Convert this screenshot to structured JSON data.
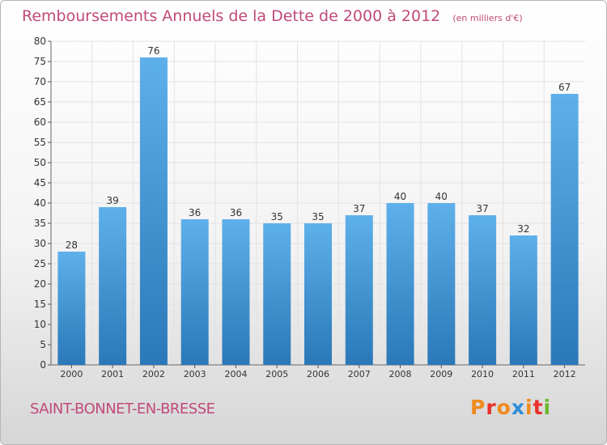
{
  "header": {
    "title": "Remboursements Annuels de la Dette de 2000 à 2012",
    "unit": "(en milliers d'€)"
  },
  "footer": {
    "commune": "SAINT-BONNET-EN-BRESSE",
    "logo_text": "Proxiti"
  },
  "colors": {
    "title": "#c04a7a",
    "bar_top": "#5eb0ea",
    "bar_bottom": "#2a78b8",
    "logo_letters": [
      "#f08a1c",
      "#e9302a",
      "#f08a1c",
      "#2e8dd8",
      "#f08a1c",
      "#e9302a",
      "#6ab82e"
    ]
  },
  "chart_data": {
    "type": "bar",
    "title": "Remboursements Annuels de la Dette de 2000 à 2012",
    "subtitle": "(en milliers d'€)",
    "categories": [
      "2000",
      "2001",
      "2002",
      "2003",
      "2004",
      "2005",
      "2006",
      "2007",
      "2008",
      "2009",
      "2010",
      "2011",
      "2012"
    ],
    "values": [
      28,
      39,
      76,
      36,
      36,
      35,
      35,
      37,
      40,
      40,
      37,
      32,
      67
    ],
    "ylim": [
      0,
      80
    ],
    "yticks": [
      0,
      5,
      10,
      15,
      20,
      25,
      30,
      35,
      40,
      45,
      50,
      55,
      60,
      65,
      70,
      75,
      80
    ],
    "grid": true,
    "legend": "none"
  }
}
